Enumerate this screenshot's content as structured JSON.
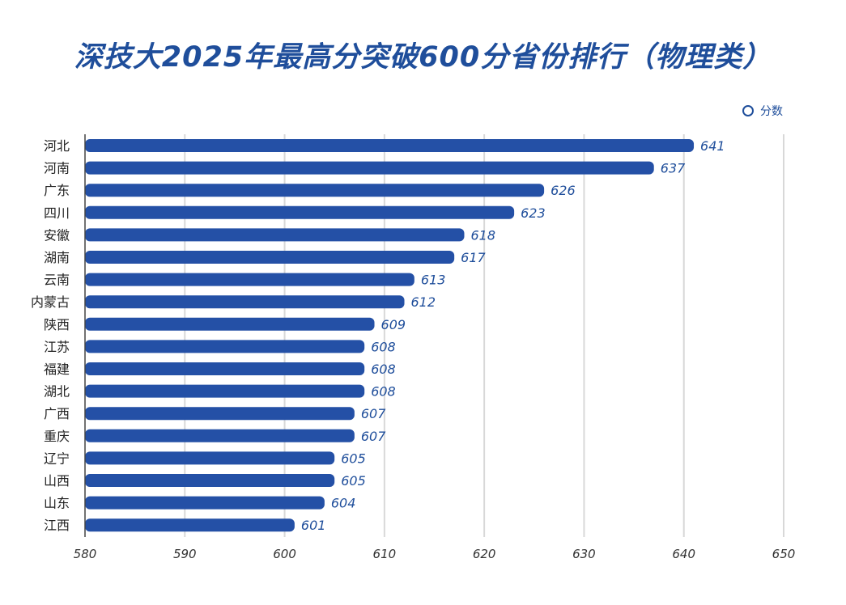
{
  "title": "深技大2025年最高分突破600分省份排行（物理类）",
  "legend": {
    "label": "分数"
  },
  "colors": {
    "bar": "#2450a6",
    "title": "#1f4e9b",
    "grid": "#d8d8d8"
  },
  "chart_data": {
    "type": "bar",
    "orientation": "horizontal",
    "title": "深技大2025年最高分突破600分省份排行（物理类）",
    "xlabel": "",
    "ylabel": "",
    "xlim": [
      580,
      650
    ],
    "xticks": [
      580,
      590,
      600,
      610,
      620,
      630,
      640,
      650
    ],
    "grid": true,
    "legend_position": "top-right",
    "categories": [
      "河北",
      "河南",
      "广东",
      "四川",
      "安徽",
      "湖南",
      "云南",
      "内蒙古",
      "陕西",
      "江苏",
      "福建",
      "湖北",
      "广西",
      "重庆",
      "辽宁",
      "山西",
      "山东",
      "江西"
    ],
    "series": [
      {
        "name": "分数",
        "values": [
          641,
          637,
          626,
          623,
          618,
          617,
          613,
          612,
          609,
          608,
          608,
          608,
          607,
          607,
          605,
          605,
          604,
          601
        ]
      }
    ]
  }
}
